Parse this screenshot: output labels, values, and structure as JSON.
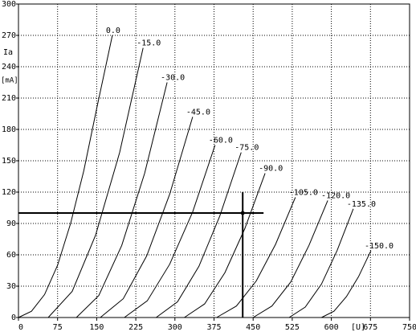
{
  "chart_data": {
    "type": "line",
    "x_label": "[U]",
    "y_label": "Ia",
    "y_unit": "[mA]",
    "xlim": [
      0,
      750
    ],
    "ylim": [
      0,
      300
    ],
    "xticks": [
      0,
      75,
      150,
      225,
      300,
      375,
      450,
      525,
      600,
      675,
      750
    ],
    "yticks": [
      0,
      30,
      60,
      90,
      120,
      150,
      180,
      210,
      240,
      270,
      300
    ],
    "grid": true,
    "color": "#000000",
    "series": [
      {
        "name": "0.0",
        "x": [
          0,
          25,
          50,
          75,
          100,
          125,
          150,
          180
        ],
        "values": [
          0,
          6,
          22,
          50,
          90,
          140,
          200,
          270
        ]
      },
      {
        "name": "-15.0",
        "x": [
          57,
          103,
          148,
          194,
          239
        ],
        "values": [
          0,
          25,
          79,
          158,
          258
        ]
      },
      {
        "name": "-30.0",
        "x": [
          111,
          154,
          198,
          242,
          285
        ],
        "values": [
          0,
          21,
          69,
          138,
          225
        ]
      },
      {
        "name": "-45.0",
        "x": [
          157,
          201,
          246,
          290,
          334
        ],
        "values": [
          0,
          18,
          59,
          118,
          192
        ]
      },
      {
        "name": "-60.0",
        "x": [
          203,
          247,
          290,
          334,
          377
        ],
        "values": [
          0,
          16,
          51,
          101,
          165
        ]
      },
      {
        "name": "-75.0",
        "x": [
          264,
          305,
          346,
          386,
          427
        ],
        "values": [
          0,
          15,
          49,
          97,
          158
        ]
      },
      {
        "name": "-90.0",
        "x": [
          318,
          357,
          396,
          434,
          473
        ],
        "values": [
          0,
          13,
          43,
          85,
          138
        ]
      },
      {
        "name": "-105.0",
        "x": [
          380,
          418,
          456,
          493,
          531
        ],
        "values": [
          0,
          11,
          35,
          70,
          115
        ]
      },
      {
        "name": "-120.0",
        "x": [
          450,
          486,
          522,
          557,
          593
        ],
        "values": [
          0,
          11,
          34,
          69,
          112
        ]
      },
      {
        "name": "-135.0",
        "x": [
          519,
          550,
          581,
          611,
          642
        ],
        "values": [
          0,
          10,
          32,
          64,
          104
        ]
      },
      {
        "name": "-150.0",
        "x": [
          581,
          605,
          629,
          652,
          676
        ],
        "values": [
          0,
          6,
          20,
          39,
          64
        ]
      }
    ],
    "operating_point": {
      "x": 430,
      "y": 100,
      "hline_xmax": 470,
      "vline_ymax": 120
    }
  }
}
